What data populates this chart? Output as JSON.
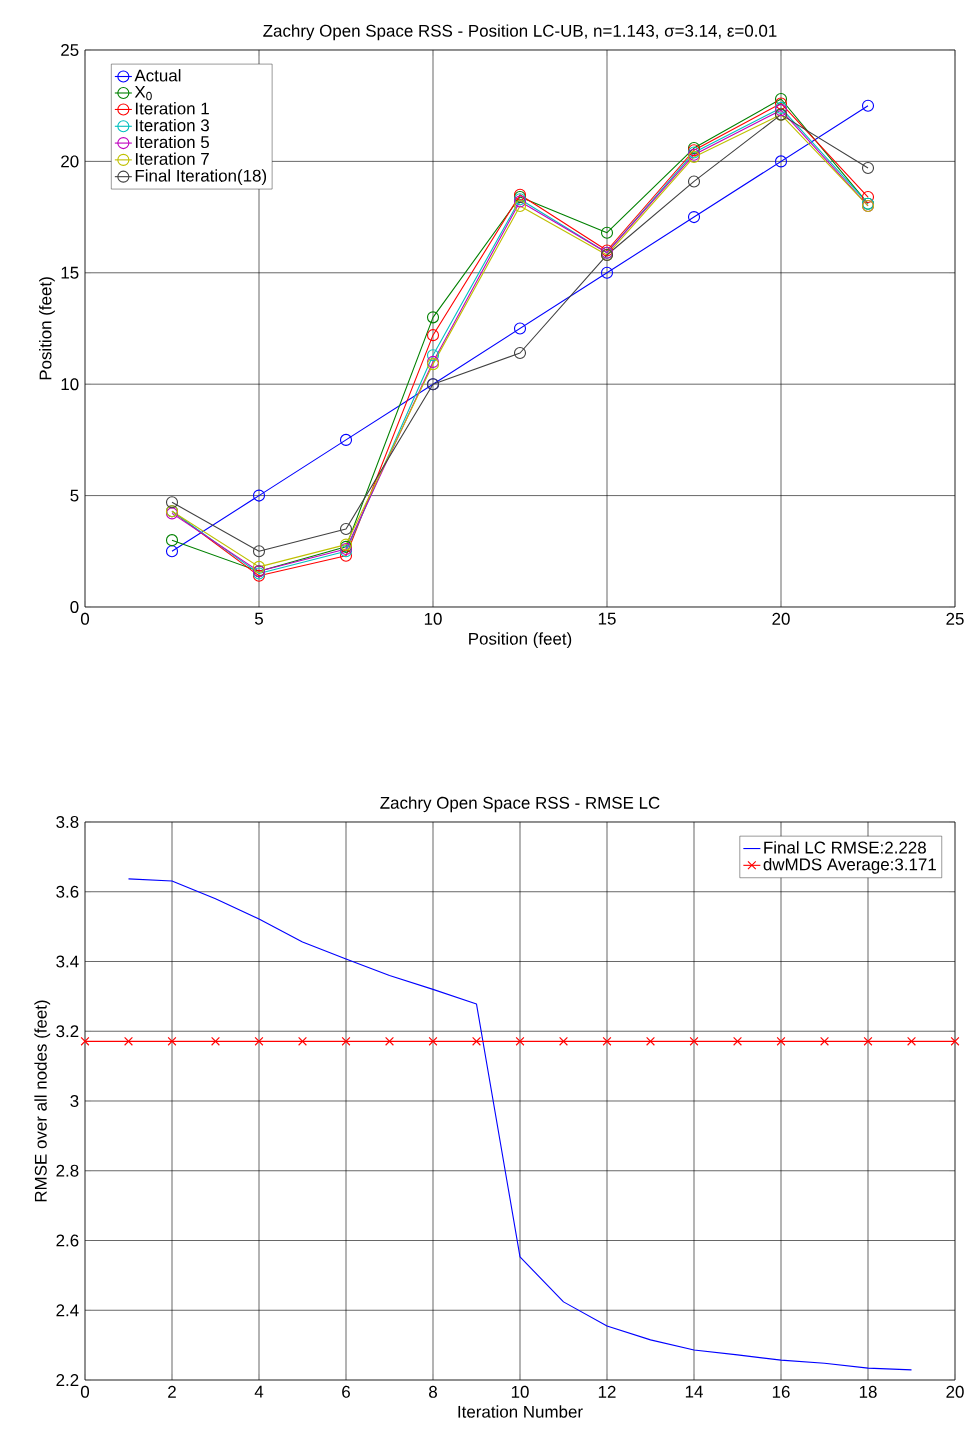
{
  "chart_data": [
    {
      "type": "line",
      "title": "Zachry Open Space RSS - Position LC-UB, n=1.143, σ=3.14, ε=0.01",
      "xlabel": "Position (feet)",
      "ylabel": "Position (feet)",
      "x": [
        2.5,
        5,
        7.5,
        10,
        12.5,
        15,
        17.5,
        20,
        22.5
      ],
      "xlim": [
        0,
        25
      ],
      "ylim": [
        0,
        25
      ],
      "xticks": [
        0,
        5,
        10,
        15,
        20,
        25
      ],
      "yticks": [
        0,
        5,
        10,
        15,
        20,
        25
      ],
      "grid": true,
      "legend": "top left",
      "marker": "circle",
      "line_style": "solid",
      "series": [
        {
          "name": "Actual",
          "color": "#0000ff",
          "values": [
            2.5,
            5,
            7.5,
            10,
            12.5,
            15,
            17.5,
            20,
            22.5
          ]
        },
        {
          "name": "X$_{0}$",
          "color": "#008000",
          "values": [
            3.0,
            1.6,
            2.7,
            13.0,
            18.4,
            16.8,
            20.6,
            22.8,
            18.1
          ]
        },
        {
          "name": "Iteration 1",
          "color": "#ff0000",
          "values": [
            4.3,
            1.4,
            2.3,
            12.2,
            18.5,
            16.0,
            20.5,
            22.6,
            18.4
          ]
        },
        {
          "name": "Iteration 3",
          "color": "#00bfbf",
          "values": [
            4.3,
            1.5,
            2.5,
            11.3,
            18.3,
            15.9,
            20.4,
            22.4,
            18.1
          ]
        },
        {
          "name": "Iteration 5",
          "color": "#bf00bf",
          "values": [
            4.2,
            1.6,
            2.6,
            11.0,
            18.2,
            15.9,
            20.3,
            22.3,
            18.0
          ]
        },
        {
          "name": "Iteration 7",
          "color": "#bfbf00",
          "values": [
            4.3,
            1.8,
            2.8,
            10.9,
            18.0,
            15.8,
            20.2,
            22.1,
            18.0
          ]
        },
        {
          "name": "Final Iteration(18)",
          "color": "#404040",
          "values": [
            4.7,
            2.5,
            3.5,
            10.0,
            11.4,
            15.8,
            19.1,
            22.1,
            19.7
          ]
        }
      ]
    },
    {
      "type": "line",
      "title": "Zachry Open Space RSS - RMSE LC",
      "xlabel": "Iteration Number",
      "ylabel": "RMSE over all nodes (feet)",
      "xlim": [
        0,
        20
      ],
      "ylim": [
        2.2,
        3.8
      ],
      "xticks": [
        0,
        2,
        4,
        6,
        8,
        10,
        12,
        14,
        16,
        18,
        20
      ],
      "yticks": [
        2.2,
        2.4,
        2.6,
        2.8,
        3,
        3.2,
        3.4,
        3.6,
        3.8
      ],
      "grid": true,
      "legend": "top right",
      "line_style": "solid",
      "series": [
        {
          "name": "Final LC  RMSE:2.228",
          "color": "#0000ff",
          "marker": "none",
          "x": [
            1,
            2,
            3,
            4,
            5,
            6,
            7,
            8,
            9,
            10,
            11,
            12,
            13,
            14,
            15,
            16,
            17,
            18,
            19
          ],
          "values": [
            3.637,
            3.631,
            3.58,
            3.522,
            3.456,
            3.407,
            3.36,
            3.32,
            3.278,
            2.553,
            2.424,
            2.355,
            2.315,
            2.286,
            2.272,
            2.257,
            2.248,
            2.234,
            2.229
          ]
        },
        {
          "name": "dwMDS Average:3.171",
          "color": "#ff0000",
          "marker": "cross",
          "x": [
            0,
            1,
            2,
            3,
            4,
            5,
            6,
            7,
            8,
            9,
            10,
            11,
            12,
            13,
            14,
            15,
            16,
            17,
            18,
            19,
            20
          ],
          "values": [
            3.171,
            3.171,
            3.171,
            3.171,
            3.171,
            3.171,
            3.171,
            3.171,
            3.171,
            3.171,
            3.171,
            3.171,
            3.171,
            3.171,
            3.171,
            3.171,
            3.171,
            3.171,
            3.171,
            3.171,
            3.171
          ]
        }
      ]
    }
  ]
}
